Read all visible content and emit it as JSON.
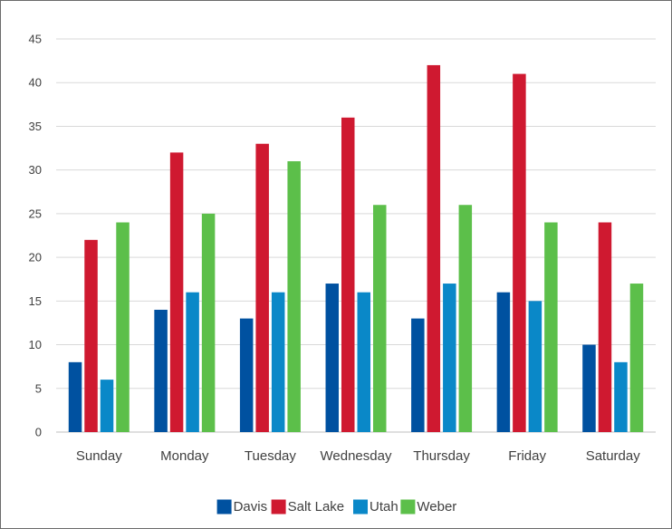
{
  "chart_data": {
    "type": "bar",
    "categories": [
      "Sunday",
      "Monday",
      "Tuesday",
      "Wednesday",
      "Thursday",
      "Friday",
      "Saturday"
    ],
    "series": [
      {
        "name": "Davis",
        "color": "#0051a0",
        "values": [
          8,
          14,
          13,
          17,
          13,
          16,
          10
        ]
      },
      {
        "name": "Salt Lake",
        "color": "#cf1930",
        "values": [
          22,
          32,
          33,
          36,
          42,
          41,
          24
        ]
      },
      {
        "name": "Utah",
        "color": "#0a88c8",
        "values": [
          6,
          16,
          16,
          16,
          17,
          15,
          8
        ]
      },
      {
        "name": "Weber",
        "color": "#5cbf4a",
        "values": [
          24,
          25,
          31,
          26,
          26,
          24,
          17
        ]
      }
    ],
    "ylim": [
      0,
      45
    ],
    "yticks": [
      0,
      5,
      10,
      15,
      20,
      25,
      30,
      35,
      40,
      45
    ],
    "grid": true,
    "legend_position": "bottom-center"
  }
}
